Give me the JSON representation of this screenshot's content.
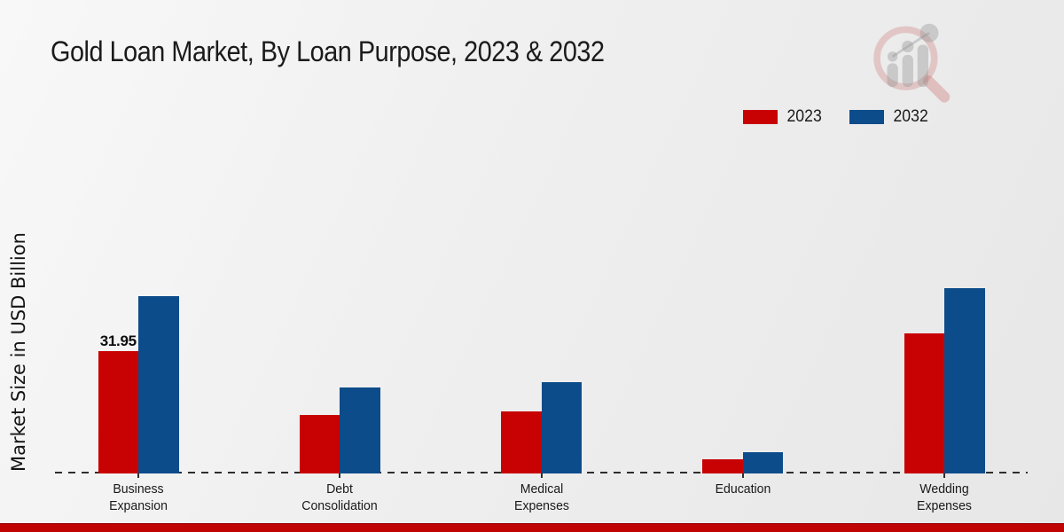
{
  "title": "Gold Loan Market, By Loan Purpose, 2023 & 2032",
  "colors": {
    "series_2023": "#c80202",
    "series_2032": "#0d4c8a",
    "bottom_strip": "#c00303",
    "baseline": "#2e2e2e",
    "text": "#1b1b1b"
  },
  "watermark": "magnifier-bar-chart-logo",
  "chart_data": {
    "type": "bar",
    "title": "Gold Loan Market, By Loan Purpose, 2023 & 2032",
    "ylabel": "Market Size in USD Billion",
    "xlabel": "",
    "categories": [
      "Business Expansion",
      "Debt Consolidation",
      "Medical Expenses",
      "Education",
      "Wedding Expenses"
    ],
    "series": [
      {
        "name": "2023",
        "color": "#c80202",
        "values": [
          31.95,
          15.3,
          16.2,
          3.8,
          36.5
        ]
      },
      {
        "name": "2032",
        "color": "#0d4c8a",
        "values": [
          46.3,
          22.5,
          23.8,
          5.6,
          48.3
        ]
      }
    ],
    "data_labels": [
      {
        "series": "2023",
        "category": "Business Expansion",
        "text": "31.95"
      }
    ],
    "ylim": [
      0,
      50
    ],
    "grid": false,
    "axis_style": "dashed-baseline-only",
    "legend_position": "top-right"
  }
}
